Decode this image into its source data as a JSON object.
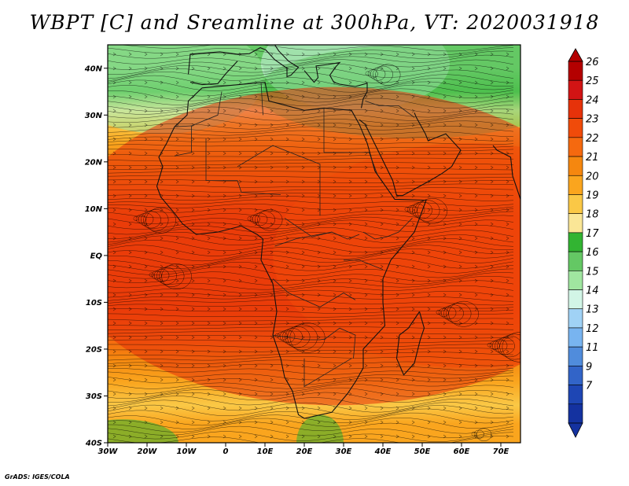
{
  "title": "WBPT [C] and Sreamline at 300hPa, VT: 2020031918",
  "credit": "GrADS: IGES/COLA",
  "map": {
    "lon_range": [
      -30,
      75
    ],
    "lat_range": [
      -40,
      45
    ],
    "lon_ticks": [
      {
        "lon": -30,
        "label": "30W"
      },
      {
        "lon": -20,
        "label": "20W"
      },
      {
        "lon": -10,
        "label": "10W"
      },
      {
        "lon": 0,
        "label": "0"
      },
      {
        "lon": 10,
        "label": "10E"
      },
      {
        "lon": 20,
        "label": "20E"
      },
      {
        "lon": 30,
        "label": "30E"
      },
      {
        "lon": 40,
        "label": "40E"
      },
      {
        "lon": 50,
        "label": "50E"
      },
      {
        "lon": 60,
        "label": "60E"
      },
      {
        "lon": 70,
        "label": "70E"
      }
    ],
    "lat_ticks": [
      {
        "lat": 40,
        "label": "40N"
      },
      {
        "lat": 30,
        "label": "30N"
      },
      {
        "lat": 20,
        "label": "20N"
      },
      {
        "lat": 10,
        "label": "10N"
      },
      {
        "lat": 0,
        "label": "EQ"
      },
      {
        "lat": -10,
        "label": "10S"
      },
      {
        "lat": -20,
        "label": "20S"
      },
      {
        "lat": -30,
        "label": "30S"
      },
      {
        "lat": -40,
        "label": "40S"
      }
    ]
  },
  "colorbar": {
    "labels": [
      "26",
      "25",
      "24",
      "23",
      "22",
      "21",
      "20",
      "19",
      "18",
      "17",
      "16",
      "15",
      "14",
      "13",
      "12",
      "11",
      "9",
      "7"
    ],
    "colors": [
      "#b40000",
      "#d21414",
      "#e6320a",
      "#f04b0a",
      "#f5690f",
      "#f5870f",
      "#faa51e",
      "#fac846",
      "#fae696",
      "#32b432",
      "#64c864",
      "#a0e6a0",
      "#d2f5e6",
      "#a0d2f5",
      "#78b4f0",
      "#508cdc",
      "#3264c8",
      "#1e46b4",
      "#1432a0"
    ]
  },
  "wbpt_bands": [
    {
      "lat": 45,
      "value": 16.5
    },
    {
      "lat": 40,
      "value": 16.5
    },
    {
      "lat": 35,
      "value": 17.2
    },
    {
      "lat": 31,
      "value": 18.2
    },
    {
      "lat": 28,
      "value": 19.3
    },
    {
      "lat": 24,
      "value": 20.5
    },
    {
      "lat": 20,
      "value": 21.8
    },
    {
      "lat": 14,
      "value": 22.7
    },
    {
      "lat": 8,
      "value": 23.3
    },
    {
      "lat": 2,
      "value": 23.6
    },
    {
      "lat": -5,
      "value": 23.4
    },
    {
      "lat": -12,
      "value": 23.0
    },
    {
      "lat": -18,
      "value": 22.3
    },
    {
      "lat": -22,
      "value": 21.4
    },
    {
      "lat": -27,
      "value": 20.3
    },
    {
      "lat": -32,
      "value": 19.4
    },
    {
      "lat": -36,
      "value": 20.2
    },
    {
      "lat": -40,
      "value": 20.8
    }
  ]
}
